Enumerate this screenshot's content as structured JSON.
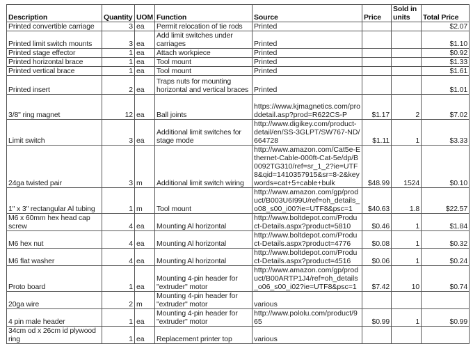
{
  "headers": [
    "Description",
    "Quantity",
    "UOM",
    "Function",
    "Source",
    "Price",
    "Sold in units",
    "Total Price"
  ],
  "rows": [
    {
      "description": "Printed convertible carriage",
      "quantity": "3",
      "uom": "ea",
      "function": "Permit relocation of tie rods",
      "source": "Printed",
      "price": "",
      "sold": "",
      "total": "$2.07"
    },
    {
      "description": "Printed limit switch mounts",
      "quantity": "3",
      "uom": "ea",
      "function": "Add limit switches under carriages",
      "source": "Printed",
      "price": "",
      "sold": "",
      "total": "$1.10"
    },
    {
      "description": "Printed stage effector",
      "quantity": "1",
      "uom": "ea",
      "function": "Attach workpiece",
      "source": "Printed",
      "price": "",
      "sold": "",
      "total": "$0.92"
    },
    {
      "description": "Printed horizontal brace",
      "quantity": "1",
      "uom": "ea",
      "function": "Tool mount",
      "source": "Printed",
      "price": "",
      "sold": "",
      "total": "$1.33"
    },
    {
      "description": "Printed vertical brace",
      "quantity": "1",
      "uom": "ea",
      "function": "Tool mount",
      "source": "Printed",
      "price": "",
      "sold": "",
      "total": "$1.61"
    },
    {
      "description": "Printed insert",
      "quantity": "2",
      "uom": "ea",
      "function": "Traps nuts for mounting horizontal and vertical braces",
      "source": "Printed",
      "price": "",
      "sold": "",
      "total": "$1.01"
    },
    {
      "description": "3/8\" ring magnet",
      "quantity": "12",
      "uom": "ea",
      "function": "Ball joints",
      "source": "https://www.kjmagnetics.com/proddetail.asp?prod=R622CS-P",
      "price": "$1.17",
      "sold": "2",
      "total": "$7.02"
    },
    {
      "description": "Limit switch",
      "quantity": "3",
      "uom": "ea",
      "function": "Additional limit switches for stage mode",
      "source": "http://www.digikey.com/product-detail/en/SS-3GLPT/SW767-ND/664728",
      "price": "$1.11",
      "sold": "1",
      "total": "$3.33"
    },
    {
      "description": "24ga twisted pair",
      "quantity": "3",
      "uom": "m",
      "function": "Additional limit switch wiring",
      "source": "http://www.amazon.com/Cat5e-Ethernet-Cable-000ft-Cat-5e/dp/B0092TG310/ref=sr_1_2?ie=UTF8&qid=1410357915&sr=8-2&keywords=cat+5+cable+bulk",
      "price": "$48.99",
      "sold": "1524",
      "total": "$0.10"
    },
    {
      "description": "1\" x 3\" rectangular Al tubing",
      "quantity": "1",
      "uom": "m",
      "function": "Tool mount",
      "source": "http://www.amazon.com/gp/product/B003U6I99U/ref=oh_details_o08_s00_i00?ie=UTF8&psc=1",
      "price": "$40.63",
      "sold": "1.8",
      "total": "$22.57"
    },
    {
      "description": "M6 x 60mm hex head cap screw",
      "quantity": "4",
      "uom": "ea",
      "function": "Mounting Al horizontal",
      "source": "http://www.boltdepot.com/Product-Details.aspx?product=5810",
      "price": "$0.46",
      "sold": "1",
      "total": "$1.84"
    },
    {
      "description": "M6 hex nut",
      "quantity": "4",
      "uom": "ea",
      "function": "Mounting Al horizontal",
      "source": "http://www.boltdepot.com/Product-Details.aspx?product=4776",
      "price": "$0.08",
      "sold": "1",
      "total": "$0.32"
    },
    {
      "description": "M6 flat washer",
      "quantity": "4",
      "uom": "ea",
      "function": "Mounting Al horizontal",
      "source": "http://www.boltdepot.com/Product-Details.aspx?product=4516",
      "price": "$0.06",
      "sold": "1",
      "total": "$0.24"
    },
    {
      "description": "Proto board",
      "quantity": "1",
      "uom": "ea",
      "function": "Mounting 4-pin header for \"extruder\" motor",
      "source": "http://www.amazon.com/gp/product/B00ARTP1J4/ref=oh_details_o06_s00_i02?ie=UTF8&psc=1",
      "price": "$7.42",
      "sold": "10",
      "total": "$0.74"
    },
    {
      "description": "20ga wire",
      "quantity": "2",
      "uom": "m",
      "function": "Mounting 4-pin header for \"extruder\" motor",
      "source": "various",
      "price": "",
      "sold": "",
      "total": ""
    },
    {
      "description": "4 pin male header",
      "quantity": "1",
      "uom": "ea",
      "function": "Mounting 4-pin header for \"extruder\" motor",
      "source": "http://www.pololu.com/product/965",
      "price": "$0.99",
      "sold": "1",
      "total": "$0.99"
    },
    {
      "description": "34cm od x 26cm id plywood ring",
      "quantity": "1",
      "uom": "ea",
      "function": "Replacement printer top",
      "source": "various",
      "price": "",
      "sold": "",
      "total": ""
    }
  ]
}
